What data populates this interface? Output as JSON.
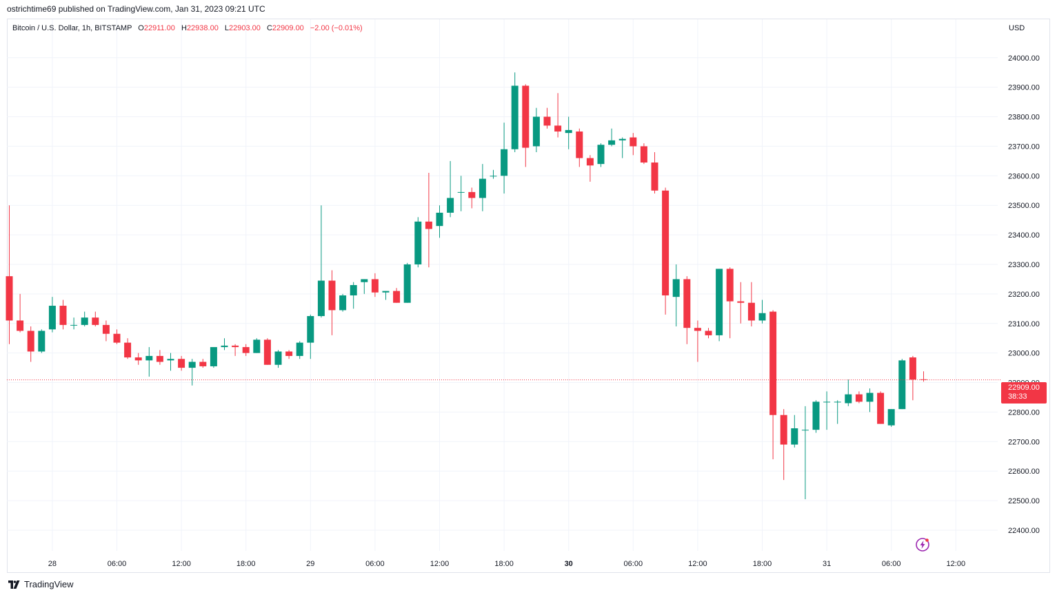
{
  "publisher": "ostrichtime69 published on TradingView.com, Jan 31, 2023 09:21 UTC",
  "footer_brand": "TradingView",
  "legend": {
    "symbol": "Bitcoin / U.S. Dollar, 1h, BITSTAMP",
    "o_label": "O",
    "o_value": "22911.00",
    "h_label": "H",
    "h_value": "22938.00",
    "l_label": "L",
    "l_value": "22903.00",
    "c_label": "C",
    "c_value": "22909.00",
    "change": "−2.00 (−0.01%)"
  },
  "currency": "USD",
  "last_price_label": {
    "price": "22909.00",
    "countdown": "38:33"
  },
  "colors": {
    "up": "#089981",
    "down": "#f23645",
    "grid": "#f0f3fa",
    "text": "#131722"
  },
  "icons": {
    "alert": "lightning-bolt-icon",
    "brand": "tradingview-logo-icon"
  },
  "chart_data": {
    "type": "candlestick",
    "interval": "1h",
    "ylim": [
      22330,
      24130
    ],
    "y_ticks": [
      "24000.00",
      "23900.00",
      "23800.00",
      "23700.00",
      "23600.00",
      "23500.00",
      "23400.00",
      "23300.00",
      "23200.00",
      "23100.00",
      "23000.00",
      "22900.00",
      "22800.00",
      "22700.00",
      "22600.00",
      "22500.00",
      "22400.00"
    ],
    "x_ticks": [
      {
        "label": "28",
        "bar": 4,
        "bold": false
      },
      {
        "label": "06:00",
        "bar": 10,
        "bold": false
      },
      {
        "label": "12:00",
        "bar": 16,
        "bold": false
      },
      {
        "label": "18:00",
        "bar": 22,
        "bold": false
      },
      {
        "label": "29",
        "bar": 28,
        "bold": false
      },
      {
        "label": "06:00",
        "bar": 34,
        "bold": false
      },
      {
        "label": "12:00",
        "bar": 40,
        "bold": false
      },
      {
        "label": "18:00",
        "bar": 46,
        "bold": false
      },
      {
        "label": "30",
        "bar": 52,
        "bold": true
      },
      {
        "label": "06:00",
        "bar": 58,
        "bold": false
      },
      {
        "label": "12:00",
        "bar": 64,
        "bold": false
      },
      {
        "label": "18:00",
        "bar": 70,
        "bold": false
      },
      {
        "label": "31",
        "bar": 76,
        "bold": false
      },
      {
        "label": "06:00",
        "bar": 82,
        "bold": false
      },
      {
        "label": "12:00",
        "bar": 88,
        "bold": false
      }
    ],
    "last_price": 22909,
    "candles": [
      [
        23260,
        23500,
        23030,
        23110
      ],
      [
        23110,
        23200,
        23070,
        23075
      ],
      [
        23075,
        23090,
        22970,
        23005
      ],
      [
        23005,
        23080,
        23000,
        23075
      ],
      [
        23080,
        23190,
        23070,
        23160
      ],
      [
        23160,
        23180,
        23080,
        23095
      ],
      [
        23095,
        23120,
        23080,
        23095
      ],
      [
        23095,
        23140,
        23090,
        23120
      ],
      [
        23120,
        23140,
        23090,
        23095
      ],
      [
        23095,
        23110,
        23040,
        23065
      ],
      [
        23065,
        23080,
        23030,
        23035
      ],
      [
        23035,
        23050,
        22980,
        22985
      ],
      [
        22985,
        23000,
        22960,
        22975
      ],
      [
        22975,
        23020,
        22920,
        22990
      ],
      [
        22990,
        23010,
        22960,
        22970
      ],
      [
        22975,
        23000,
        22940,
        22980
      ],
      [
        22980,
        22990,
        22940,
        22950
      ],
      [
        22950,
        22980,
        22890,
        22970
      ],
      [
        22970,
        22980,
        22950,
        22955
      ],
      [
        22955,
        23010,
        22950,
        23020
      ],
      [
        23020,
        23050,
        23010,
        23025
      ],
      [
        23025,
        23030,
        22990,
        23020
      ],
      [
        23020,
        23030,
        22990,
        23000
      ],
      [
        23000,
        23050,
        23000,
        23045
      ],
      [
        23045,
        23050,
        22960,
        22960
      ],
      [
        22960,
        23010,
        22950,
        23005
      ],
      [
        23005,
        23010,
        22980,
        22990
      ],
      [
        22990,
        23040,
        22980,
        23035
      ],
      [
        23035,
        23130,
        22980,
        23125
      ],
      [
        23125,
        23500,
        23120,
        23245
      ],
      [
        23245,
        23280,
        23060,
        23145
      ],
      [
        23145,
        23200,
        23140,
        23195
      ],
      [
        23195,
        23240,
        23150,
        23230
      ],
      [
        23240,
        23250,
        23200,
        23250
      ],
      [
        23250,
        23270,
        23190,
        23205
      ],
      [
        23205,
        23210,
        23180,
        23210
      ],
      [
        23210,
        23220,
        23170,
        23170
      ],
      [
        23170,
        23305,
        23170,
        23300
      ],
      [
        23300,
        23460,
        23290,
        23445
      ],
      [
        23445,
        23610,
        23290,
        23420
      ],
      [
        23430,
        23500,
        23390,
        23475
      ],
      [
        23475,
        23650,
        23460,
        23525
      ],
      [
        23545,
        23600,
        23480,
        23545
      ],
      [
        23545,
        23560,
        23490,
        23525
      ],
      [
        23525,
        23640,
        23480,
        23590
      ],
      [
        23600,
        23620,
        23590,
        23600
      ],
      [
        23600,
        23780,
        23540,
        23690
      ],
      [
        23690,
        23950,
        23680,
        23905
      ],
      [
        23905,
        23910,
        23630,
        23695
      ],
      [
        23700,
        23830,
        23680,
        23800
      ],
      [
        23800,
        23830,
        23760,
        23770
      ],
      [
        23770,
        23880,
        23730,
        23750
      ],
      [
        23745,
        23800,
        23690,
        23755
      ],
      [
        23750,
        23760,
        23630,
        23660
      ],
      [
        23660,
        23670,
        23580,
        23635
      ],
      [
        23640,
        23710,
        23630,
        23705
      ],
      [
        23705,
        23760,
        23700,
        23720
      ],
      [
        23720,
        23730,
        23660,
        23725
      ],
      [
        23730,
        23745,
        23670,
        23700
      ],
      [
        23700,
        23710,
        23640,
        23645
      ],
      [
        23645,
        23680,
        23540,
        23550
      ],
      [
        23550,
        23560,
        23130,
        23195
      ],
      [
        23190,
        23300,
        23090,
        23250
      ],
      [
        23250,
        23260,
        23030,
        23085
      ],
      [
        23085,
        23110,
        22970,
        23075
      ],
      [
        23075,
        23085,
        23050,
        23060
      ],
      [
        23060,
        23285,
        23040,
        23285
      ],
      [
        23285,
        23290,
        23050,
        23175
      ],
      [
        23175,
        23240,
        23100,
        23170
      ],
      [
        23170,
        23240,
        23090,
        23110
      ],
      [
        23110,
        23180,
        23100,
        23135
      ],
      [
        23140,
        23145,
        22640,
        22790
      ],
      [
        22790,
        22810,
        22570,
        22690
      ],
      [
        22690,
        22790,
        22680,
        22745
      ],
      [
        22740,
        22820,
        22505,
        22740
      ],
      [
        22740,
        22840,
        22730,
        22835
      ],
      [
        22835,
        22870,
        22740,
        22835
      ],
      [
        22835,
        22840,
        22760,
        22835
      ],
      [
        22830,
        22910,
        22820,
        22860
      ],
      [
        22860,
        22870,
        22830,
        22835
      ],
      [
        22835,
        22880,
        22800,
        22865
      ],
      [
        22865,
        22870,
        22760,
        22760
      ],
      [
        22755,
        22810,
        22750,
        22810
      ],
      [
        22810,
        22980,
        22810,
        22975
      ],
      [
        22985,
        22990,
        22840,
        22910
      ],
      [
        22911,
        22938,
        22903,
        22909
      ]
    ]
  }
}
